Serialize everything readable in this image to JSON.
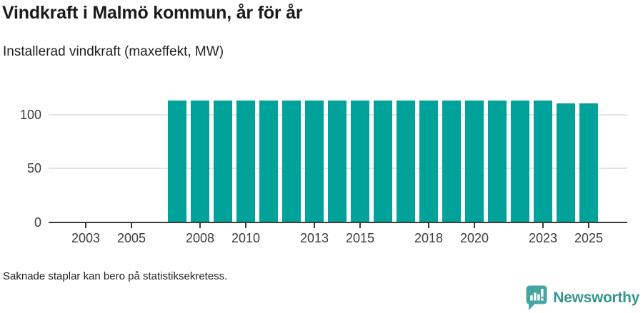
{
  "header": {
    "title": "Vindkraft i Malmö kommun, år för år",
    "subtitle": "Installerad vindkraft (maxeffekt, MW)"
  },
  "footer": {
    "note": "Saknade staplar kan bero på statistiksekretess.",
    "brand_name": "Newsworthy",
    "brand_icon": "newsworthy-speech-bubble-chart-icon"
  },
  "colors": {
    "bar": "#00a29a",
    "gridline": "#e4e4e4",
    "axis": "#3d3d3d",
    "brand_teal": "#37968f",
    "logo_icon_teal": "#47a5a1"
  },
  "chart_data": {
    "type": "bar",
    "title": "Vindkraft i Malmö kommun, år för år",
    "subtitle": "Installerad vindkraft (maxeffekt, MW)",
    "xlabel": "",
    "ylabel": "Installerad vindkraft (maxeffekt, MW)",
    "categories": [
      2002,
      2003,
      2004,
      2005,
      2006,
      2007,
      2008,
      2009,
      2010,
      2011,
      2012,
      2013,
      2014,
      2015,
      2016,
      2017,
      2018,
      2019,
      2020,
      2021,
      2022,
      2023,
      2024,
      2025
    ],
    "values": [
      null,
      null,
      null,
      null,
      null,
      113,
      113,
      113,
      113,
      113,
      113,
      113,
      113,
      113,
      113,
      113,
      113,
      113,
      113,
      113,
      113,
      113,
      110,
      110
    ],
    "x_tick_labels": [
      "2003",
      "2005",
      "2008",
      "2010",
      "2013",
      "2015",
      "2018",
      "2020",
      "2023",
      "2025"
    ],
    "y_ticks": [
      0,
      50,
      100
    ],
    "ylim": [
      0,
      120
    ],
    "grid": "horizontal-only",
    "legend": "none",
    "bar_color": "#00a29a",
    "annotation": "Saknade staplar kan bero på statistiksekretess."
  }
}
